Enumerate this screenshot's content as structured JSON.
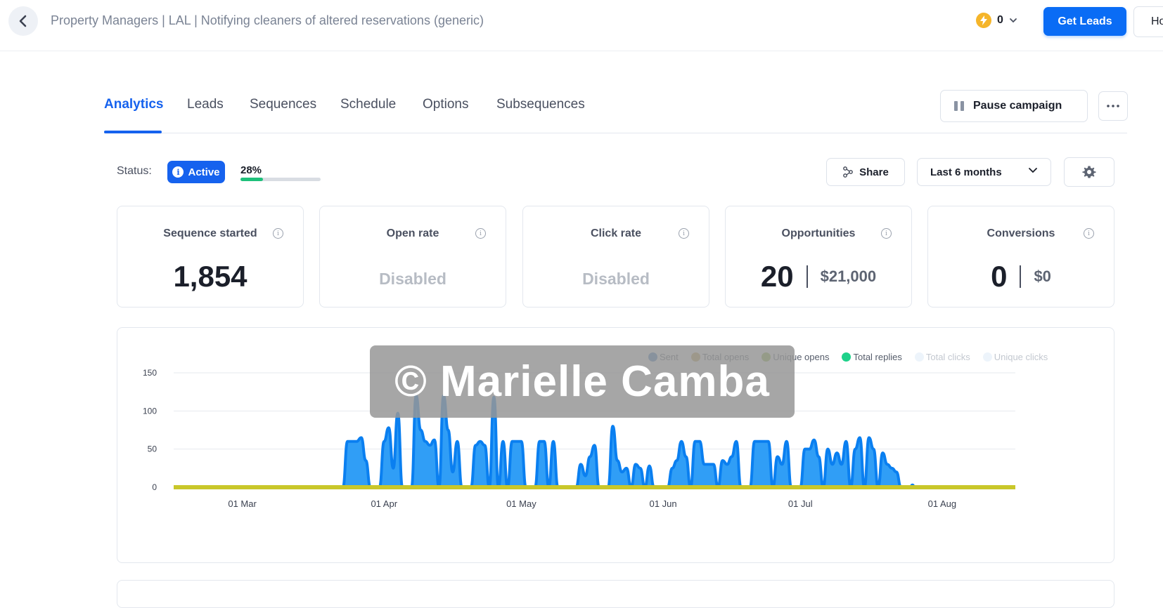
{
  "header": {
    "breadcrumb": "Property Managers | LAL | Notifying cleaners of altered reservations (generic)",
    "credits": "0",
    "get_leads_label": "Get Leads",
    "ho_label": "Ho"
  },
  "tabs": [
    {
      "label": "Analytics",
      "active": true
    },
    {
      "label": "Leads"
    },
    {
      "label": "Sequences"
    },
    {
      "label": "Schedule"
    },
    {
      "label": "Options"
    },
    {
      "label": "Subsequences"
    }
  ],
  "actions": {
    "pause_label": "Pause campaign",
    "share_label": "Share",
    "range_value": "Last 6 months"
  },
  "status": {
    "label": "Status:",
    "badge": "Active",
    "progress_text": "28%",
    "progress_fraction": 0.28
  },
  "cards": [
    {
      "title": "Sequence started",
      "value": "1,854"
    },
    {
      "title": "Open rate",
      "value": "Disabled"
    },
    {
      "title": "Click rate",
      "value": "Disabled"
    },
    {
      "title": "Opportunities",
      "value": "20",
      "amount": "$21,000"
    },
    {
      "title": "Conversions",
      "value": "0",
      "amount": "$0"
    }
  ],
  "chart_data": {
    "type": "area",
    "legend": [
      {
        "name": "Sent",
        "color": "#3b7bbf",
        "active": true
      },
      {
        "name": "Total opens",
        "color": "#c4a24a",
        "active": true
      },
      {
        "name": "Unique opens",
        "color": "#8ab53a",
        "active": true
      },
      {
        "name": "Total replies",
        "color": "#1ed18a",
        "active": true
      },
      {
        "name": "Total clicks",
        "color": "#edf4fb",
        "active": false
      },
      {
        "name": "Unique clicks",
        "color": "#edf4fb",
        "active": false
      }
    ],
    "ylim": [
      0,
      150
    ],
    "yticks": [
      "0",
      "50",
      "100",
      "150"
    ],
    "xticks": [
      "01 Mar",
      "01 Apr",
      "01 May",
      "01 Jun",
      "01 Jul",
      "01 Aug"
    ],
    "xlim": [
      0,
      184
    ],
    "xtick_days": [
      15,
      46,
      76,
      107,
      137,
      168
    ],
    "series": [
      {
        "name": "Sent",
        "color": "#1e96f5",
        "points": [
          [
            0,
            0
          ],
          [
            37,
            0
          ],
          [
            38,
            60
          ],
          [
            39,
            60
          ],
          [
            40,
            60
          ],
          [
            41,
            65
          ],
          [
            42,
            35
          ],
          [
            43,
            0
          ],
          [
            45,
            0
          ],
          [
            46,
            60
          ],
          [
            47,
            78
          ],
          [
            48,
            25
          ],
          [
            49,
            97
          ],
          [
            50,
            0
          ],
          [
            52,
            0
          ],
          [
            53,
            120
          ],
          [
            54,
            75
          ],
          [
            55,
            60
          ],
          [
            56,
            55
          ],
          [
            57,
            62
          ],
          [
            58,
            0
          ],
          [
            59,
            120
          ],
          [
            60,
            75
          ],
          [
            61,
            20
          ],
          [
            62,
            60
          ],
          [
            63,
            0
          ],
          [
            65,
            0
          ],
          [
            66,
            55
          ],
          [
            67,
            60
          ],
          [
            68,
            55
          ],
          [
            69,
            0
          ],
          [
            70,
            118
          ],
          [
            71,
            0
          ],
          [
            72,
            60
          ],
          [
            73,
            0
          ],
          [
            74,
            60
          ],
          [
            75,
            60
          ],
          [
            76,
            60
          ],
          [
            77,
            0
          ],
          [
            79,
            0
          ],
          [
            80,
            60
          ],
          [
            81,
            60
          ],
          [
            82,
            0
          ],
          [
            83,
            60
          ],
          [
            84,
            0
          ],
          [
            88,
            0
          ],
          [
            89,
            30
          ],
          [
            90,
            15
          ],
          [
            91,
            40
          ],
          [
            92,
            55
          ],
          [
            93,
            0
          ],
          [
            95,
            0
          ],
          [
            96,
            80
          ],
          [
            97,
            35
          ],
          [
            98,
            20
          ],
          [
            99,
            25
          ],
          [
            100,
            0
          ],
          [
            101,
            30
          ],
          [
            102,
            25
          ],
          [
            103,
            0
          ],
          [
            104,
            28
          ],
          [
            105,
            0
          ],
          [
            108,
            0
          ],
          [
            109,
            25
          ],
          [
            110,
            35
          ],
          [
            111,
            60
          ],
          [
            112,
            40
          ],
          [
            113,
            0
          ],
          [
            114,
            60
          ],
          [
            115,
            60
          ],
          [
            116,
            30
          ],
          [
            117,
            30
          ],
          [
            118,
            30
          ],
          [
            119,
            0
          ],
          [
            120,
            35
          ],
          [
            121,
            30
          ],
          [
            122,
            40
          ],
          [
            123,
            60
          ],
          [
            124,
            0
          ],
          [
            126,
            0
          ],
          [
            127,
            60
          ],
          [
            128,
            60
          ],
          [
            129,
            60
          ],
          [
            130,
            60
          ],
          [
            131,
            0
          ],
          [
            132,
            40
          ],
          [
            133,
            30
          ],
          [
            134,
            60
          ],
          [
            135,
            0
          ],
          [
            137,
            0
          ],
          [
            138,
            50
          ],
          [
            139,
            50
          ],
          [
            140,
            62
          ],
          [
            141,
            40
          ],
          [
            142,
            0
          ],
          [
            143,
            50
          ],
          [
            144,
            30
          ],
          [
            145,
            45
          ],
          [
            146,
            30
          ],
          [
            147,
            60
          ],
          [
            148,
            0
          ],
          [
            149,
            50
          ],
          [
            150,
            65
          ],
          [
            151,
            0
          ],
          [
            152,
            65
          ],
          [
            153,
            50
          ],
          [
            154,
            0
          ],
          [
            155,
            45
          ],
          [
            156,
            30
          ],
          [
            157,
            25
          ],
          [
            158,
            20
          ],
          [
            159,
            0
          ],
          [
            161,
            0
          ],
          [
            161.5,
            3
          ],
          [
            162,
            0
          ],
          [
            184,
            0
          ]
        ]
      },
      {
        "name": "Total opens",
        "color": "#c9c72a",
        "points": [
          [
            0,
            0
          ],
          [
            184,
            0
          ]
        ]
      }
    ]
  },
  "watermark": "© Marielle Camba"
}
